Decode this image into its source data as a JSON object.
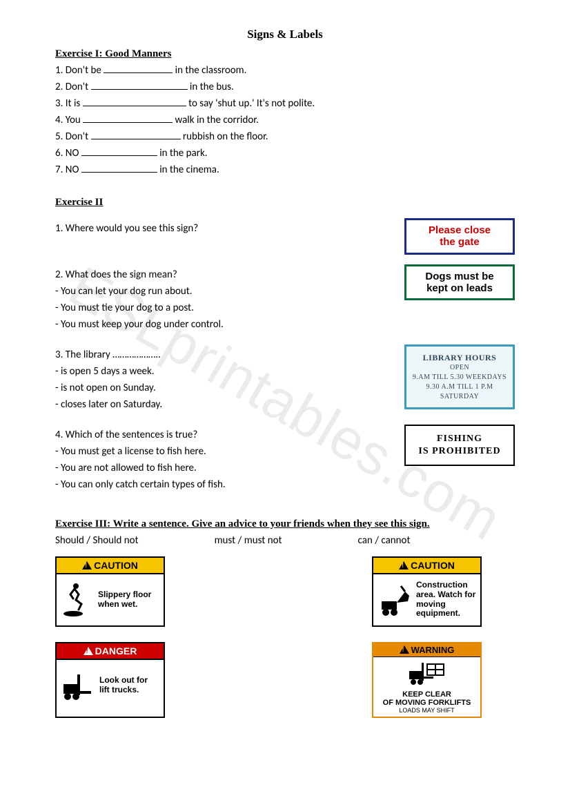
{
  "title": "Signs & Labels",
  "watermark": "ESLprintables.com",
  "exercise1": {
    "heading": "Exercise I: Good Manners",
    "items": [
      {
        "pre": "1.  Don't be ",
        "blank_w": 100,
        "post": " in the classroom."
      },
      {
        "pre": "2.  Don't ",
        "blank_w": 140,
        "post": " in the bus."
      },
      {
        "pre": "3.  It is ",
        "blank_w": 150,
        "post": " to say 'shut up.' It's not polite."
      },
      {
        "pre": "4.  You ",
        "blank_w": 130,
        "post": " walk in the corridor."
      },
      {
        "pre": "5.  Don't ",
        "blank_w": 130,
        "post": " rubbish on the floor."
      },
      {
        "pre": "6.  NO ",
        "blank_w": 110,
        "post": " in the park."
      },
      {
        "pre": "7.  NO ",
        "blank_w": 110,
        "post": " in the cinema."
      }
    ]
  },
  "exercise2": {
    "heading": "Exercise II",
    "rows": [
      {
        "q": "1.  Where would you see this sign?",
        "opts": [],
        "sign": {
          "kind": "red",
          "lines": [
            "Please close",
            "the gate"
          ]
        }
      },
      {
        "q": "2.  What does the sign mean?",
        "opts": [
          "-  You can let your dog run about.",
          "-  You must tie your dog to a post.",
          "-  You must keep your dog under control."
        ],
        "sign": {
          "kind": "green",
          "lines": [
            "Dogs must be",
            "kept on leads"
          ]
        }
      },
      {
        "q": "3.  The library ………………..",
        "opts": [
          "-  is open 5 days a week.",
          "-  is not open on Sunday.",
          "-  closes later on Saturday."
        ],
        "sign": {
          "kind": "lib",
          "title": "Library Hours",
          "sub": "Open",
          "l1": "9.am till 5.30 weekdays",
          "l2": "9.30 a.m till 1 p.m Saturday"
        }
      },
      {
        "q": "4.  Which of the sentences is true?",
        "opts": [
          "-  You must get a license to fish here.",
          "-  You are not allowed to fish here.",
          "-  You can only catch certain types of fish."
        ],
        "sign": {
          "kind": "fish",
          "lines": [
            "Fishing",
            "is prohibited"
          ]
        }
      }
    ]
  },
  "exercise3": {
    "heading": "Exercise III: Write a sentence. Give an advice to your friends when they see this sign.",
    "modals": [
      "Should / Should not",
      "must / must not",
      "can / cannot"
    ],
    "row1": [
      {
        "type": "caution",
        "header": "CAUTION",
        "text": "Slippery floor when wet.",
        "icon": "slip"
      },
      {
        "type": "caution",
        "header": "CAUTION",
        "text": "Construction area. Watch for moving equipment.",
        "icon": "backhoe"
      }
    ],
    "row2": [
      {
        "type": "danger",
        "header": "DANGER",
        "text": "Look out for lift trucks.",
        "icon": "forklift"
      },
      {
        "type": "warning",
        "header": "WARNING",
        "top": "KEEP CLEAR",
        "mid": "OF MOVING FORKLIFTS",
        "bot": "LOADS MAY SHIFT",
        "icon": "forklift2"
      }
    ]
  }
}
